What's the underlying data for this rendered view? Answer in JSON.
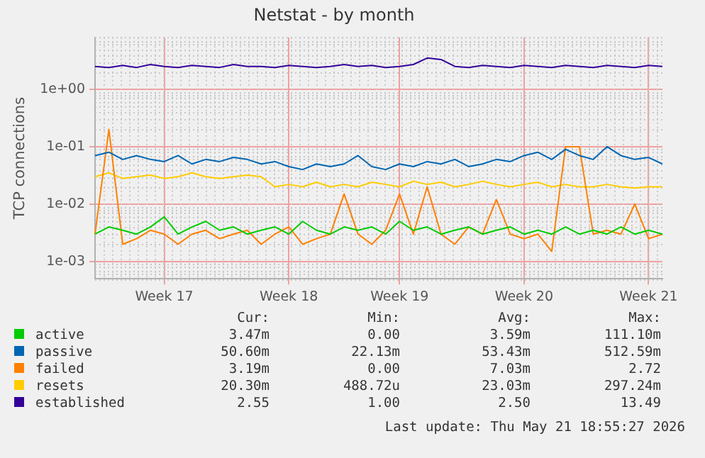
{
  "chart_data": {
    "type": "line",
    "title": "Netstat - by month",
    "ylabel": "TCP connections",
    "log": "y",
    "grid": true,
    "legend": "bottom",
    "marker": "none",
    "line_style": "solid",
    "categories": [
      null,
      null,
      null,
      null,
      null,
      "Week 17",
      null,
      null,
      null,
      null,
      null,
      null,
      null,
      null,
      "Week 18",
      null,
      null,
      null,
      null,
      null,
      null,
      null,
      "Week 19",
      null,
      null,
      null,
      null,
      null,
      null,
      null,
      null,
      "Week 20",
      null,
      null,
      null,
      null,
      null,
      null,
      null,
      null,
      "Week 21",
      null
    ],
    "ylim": [
      0.0005,
      8
    ],
    "yticks": [
      {
        "value": 0.001,
        "label": "1e-03"
      },
      {
        "value": 0.01,
        "label": "1e-02"
      },
      {
        "value": 0.1,
        "label": "1e-01"
      },
      {
        "value": 1,
        "label": "1e+00"
      }
    ],
    "series": [
      {
        "name": "active",
        "color": "#00cc00",
        "values": [
          0.003,
          0.004,
          0.0035,
          0.003,
          0.004,
          0.006,
          0.003,
          0.004,
          0.005,
          0.0035,
          0.004,
          0.003,
          0.0035,
          0.004,
          0.003,
          0.005,
          0.0035,
          0.003,
          0.004,
          0.0035,
          0.004,
          0.003,
          0.005,
          0.0035,
          0.004,
          0.003,
          0.0035,
          0.004,
          0.003,
          0.0035,
          0.004,
          0.003,
          0.0035,
          0.003,
          0.004,
          0.003,
          0.0035,
          0.003,
          0.004,
          0.003,
          0.0035,
          0.003
        ]
      },
      {
        "name": "passive",
        "color": "#0066b3",
        "values": [
          0.07,
          0.08,
          0.06,
          0.07,
          0.06,
          0.055,
          0.07,
          0.05,
          0.06,
          0.055,
          0.065,
          0.06,
          0.05,
          0.055,
          0.045,
          0.04,
          0.05,
          0.045,
          0.05,
          0.07,
          0.045,
          0.04,
          0.05,
          0.045,
          0.055,
          0.05,
          0.06,
          0.045,
          0.05,
          0.06,
          0.055,
          0.07,
          0.08,
          0.06,
          0.09,
          0.07,
          0.06,
          0.1,
          0.07,
          0.06,
          0.065,
          0.05
        ]
      },
      {
        "name": "failed",
        "color": "#ff8000",
        "values": [
          0.003,
          0.2,
          0.002,
          0.0025,
          0.0035,
          0.003,
          0.002,
          0.003,
          0.0035,
          0.0025,
          0.003,
          0.0035,
          0.002,
          0.003,
          0.004,
          0.002,
          0.0025,
          0.003,
          0.015,
          0.003,
          0.002,
          0.0035,
          0.015,
          0.003,
          0.02,
          0.003,
          0.002,
          0.004,
          0.003,
          0.012,
          0.003,
          0.0025,
          0.003,
          0.0015,
          0.1,
          0.1,
          0.003,
          0.0035,
          0.003,
          0.01,
          0.0025,
          0.003
        ]
      },
      {
        "name": "resets",
        "color": "#ffcc00",
        "values": [
          0.03,
          0.035,
          0.028,
          0.03,
          0.032,
          0.028,
          0.03,
          0.035,
          0.03,
          0.028,
          0.03,
          0.032,
          0.03,
          0.02,
          0.022,
          0.02,
          0.024,
          0.02,
          0.022,
          0.02,
          0.024,
          0.022,
          0.02,
          0.025,
          0.022,
          0.024,
          0.02,
          0.022,
          0.025,
          0.022,
          0.02,
          0.022,
          0.024,
          0.02,
          0.022,
          0.02,
          0.02,
          0.022,
          0.02,
          0.019,
          0.02,
          0.02
        ]
      },
      {
        "name": "established",
        "color": "#330099",
        "values": [
          2.5,
          2.4,
          2.6,
          2.4,
          2.7,
          2.5,
          2.4,
          2.6,
          2.5,
          2.4,
          2.7,
          2.5,
          2.5,
          2.4,
          2.6,
          2.5,
          2.4,
          2.5,
          2.7,
          2.5,
          2.6,
          2.4,
          2.5,
          2.7,
          3.5,
          3.3,
          2.5,
          2.4,
          2.6,
          2.5,
          2.4,
          2.6,
          2.5,
          2.4,
          2.6,
          2.5,
          2.4,
          2.6,
          2.5,
          2.4,
          2.6,
          2.5
        ]
      }
    ],
    "annotations": [
      "Cur:",
      "Min:",
      "Avg:",
      "Max:",
      "3.47m",
      "0.00",
      "3.59m",
      "111.10m",
      "50.60m",
      "22.13m",
      "53.43m",
      "512.59m",
      "3.19m",
      "0.00",
      "7.03m",
      "2.72",
      "20.30m",
      "488.72u",
      "23.03m",
      "297.24m",
      "2.55",
      "1.00",
      "2.50",
      "13.49",
      "Last update: Thu May 21 18:55:27 2026"
    ]
  }
}
